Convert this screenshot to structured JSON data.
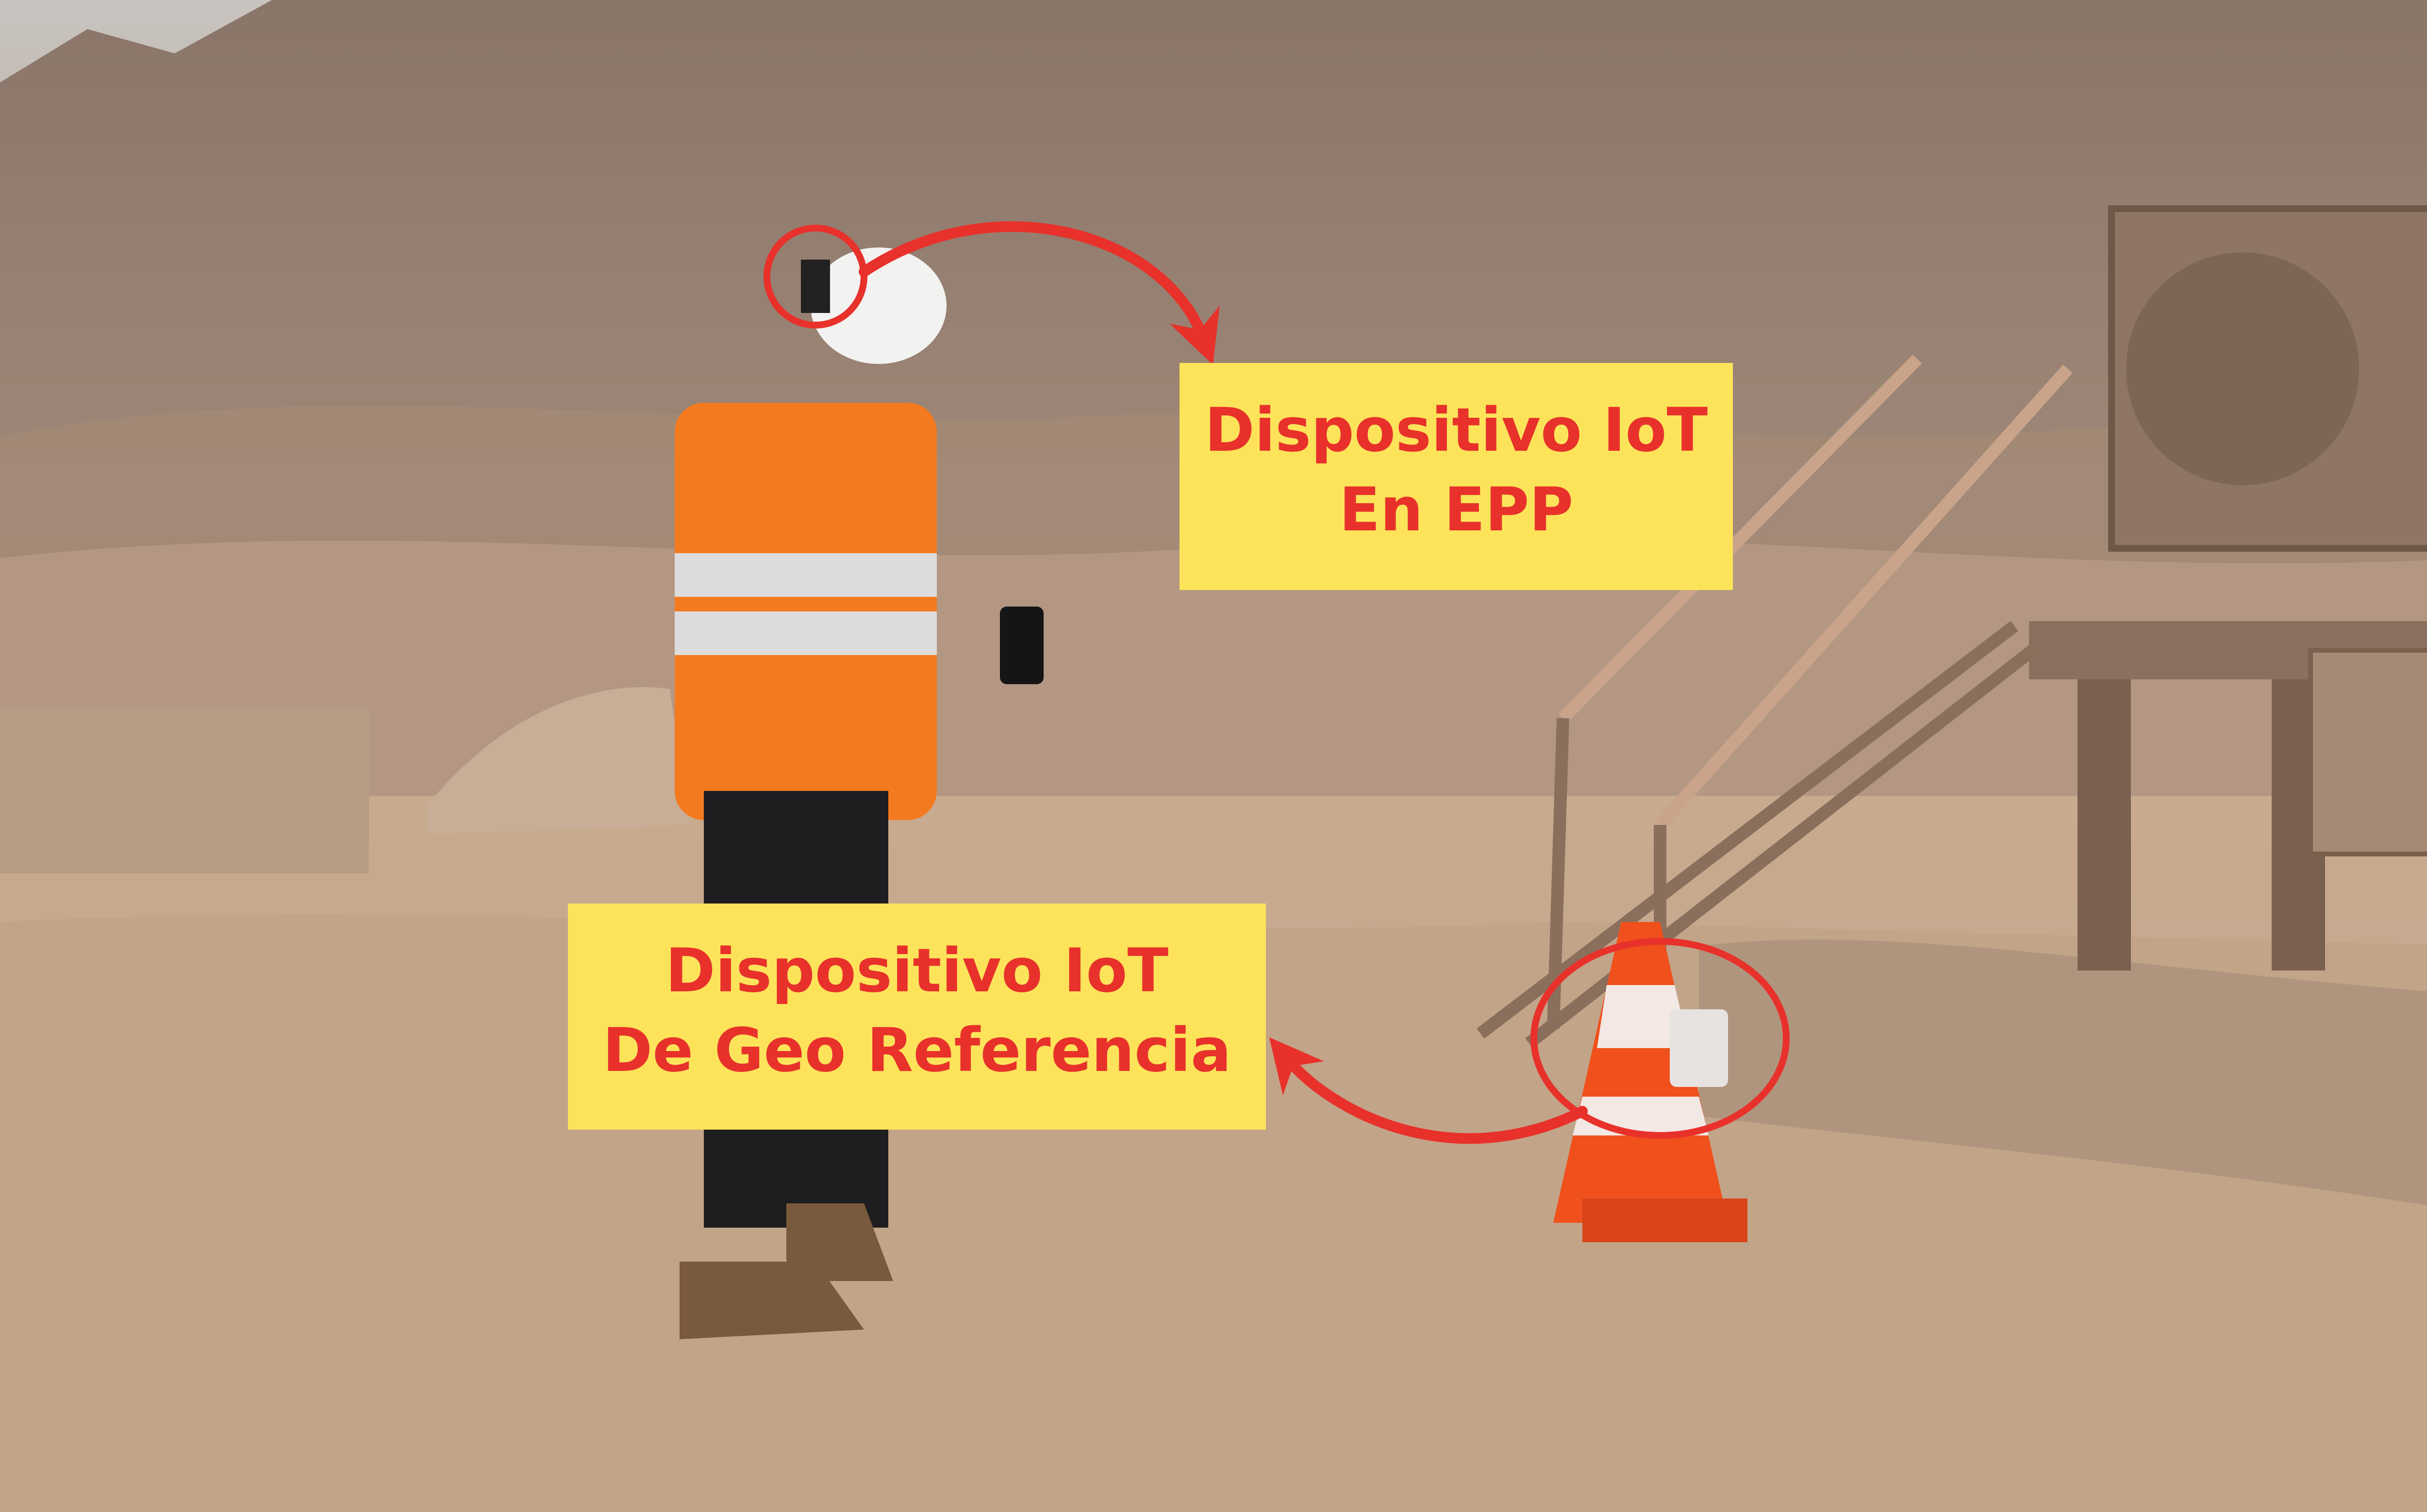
{
  "callouts": {
    "epp": {
      "line1": "Dispositivo IoT",
      "line2": "En EPP"
    },
    "geo": {
      "line1": "Dispositivo IoT",
      "line2": "De Geo Referencia"
    }
  },
  "colors": {
    "callout_bg": "#fde35a",
    "callout_text": "#e8312b",
    "annotation": "#e8312b",
    "vest": "#f47a1f",
    "cone": "#f0501c"
  }
}
